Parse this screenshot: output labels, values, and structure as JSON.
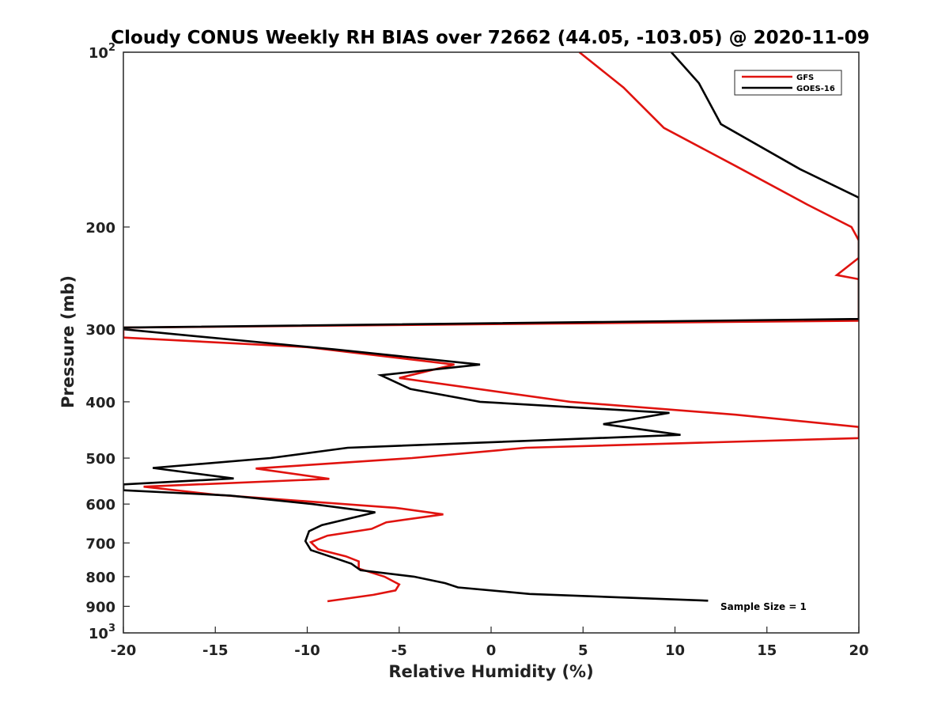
{
  "chart_data": {
    "type": "line",
    "title": "Cloudy CONUS Weekly RH BIAS over 72662 (44.05, -103.05) @ 2020-11-09",
    "xlabel": "Relative Humidity (%)",
    "ylabel": "Pressure (mb)",
    "xlim": [
      -20,
      20
    ],
    "ylim": [
      100,
      1000
    ],
    "yscale": "log",
    "y_reversed": true,
    "grid": false,
    "legend_position": "top-right",
    "x_ticks": [
      -20,
      -15,
      -10,
      -5,
      0,
      5,
      10,
      15,
      20
    ],
    "x_tick_labels": [
      "-20",
      "-15",
      "-10",
      "-5",
      "0",
      "5",
      "10",
      "15",
      "20"
    ],
    "y_ticks": [
      {
        "value": 100,
        "base": "10",
        "exp": "2"
      },
      {
        "value": 200,
        "label": "200"
      },
      {
        "value": 300,
        "label": "300"
      },
      {
        "value": 400,
        "label": "400"
      },
      {
        "value": 500,
        "label": "500"
      },
      {
        "value": 600,
        "label": "600"
      },
      {
        "value": 700,
        "label": "700"
      },
      {
        "value": 800,
        "label": "800"
      },
      {
        "value": 900,
        "label": "900"
      },
      {
        "value": 1000,
        "base": "10",
        "exp": "3"
      }
    ],
    "annotation": "Sample Size = 1",
    "series": [
      {
        "name": "GFS",
        "color": "#e0130f",
        "points": [
          [
            4.8,
            100
          ],
          [
            7.2,
            115
          ],
          [
            9.4,
            135
          ],
          [
            13.3,
            157
          ],
          [
            17.2,
            183
          ],
          [
            19.6,
            200
          ],
          [
            20,
            211
          ],
          [
            20,
            226
          ],
          [
            18.8,
            242
          ],
          [
            20,
            246
          ],
          [
            20,
            290
          ],
          [
            -20,
            298
          ],
          [
            -20,
            310
          ],
          [
            -10,
            322
          ],
          [
            -2,
            345
          ],
          [
            -5,
            364
          ],
          [
            4.3,
            400
          ],
          [
            13.3,
            421
          ],
          [
            20,
            442
          ],
          [
            20,
            462
          ],
          [
            1.9,
            480
          ],
          [
            -4.3,
            500
          ],
          [
            -12.8,
            521
          ],
          [
            -8.8,
            543
          ],
          [
            -18.9,
            560
          ],
          [
            -15,
            578
          ],
          [
            -5.2,
            609
          ],
          [
            -2.6,
            625
          ],
          [
            -5.7,
            645
          ],
          [
            -6.5,
            662
          ],
          [
            -8.9,
            680
          ],
          [
            -9.8,
            698
          ],
          [
            -9.4,
            718
          ],
          [
            -7.9,
            738
          ],
          [
            -7.2,
            753
          ],
          [
            -7.2,
            775
          ],
          [
            -5.8,
            800
          ],
          [
            -5,
            825
          ],
          [
            -5.2,
            845
          ],
          [
            -6.4,
            860
          ],
          [
            -8.9,
            882
          ]
        ]
      },
      {
        "name": "GOES-16",
        "color": "#000000",
        "points": [
          [
            9.8,
            100
          ],
          [
            11.3,
            113
          ],
          [
            12.5,
            133
          ],
          [
            16.8,
            159
          ],
          [
            20,
            178
          ],
          [
            20,
            288
          ],
          [
            -20,
            298
          ],
          [
            -20,
            300
          ],
          [
            -8.5,
            325
          ],
          [
            -0.6,
            345
          ],
          [
            -6,
            360
          ],
          [
            -4.4,
            380
          ],
          [
            -0.6,
            400
          ],
          [
            9.7,
            418
          ],
          [
            6.1,
            437
          ],
          [
            10.3,
            456
          ],
          [
            -7.8,
            480
          ],
          [
            -12,
            500
          ],
          [
            -18.4,
            520
          ],
          [
            -14,
            542
          ],
          [
            -20,
            555
          ],
          [
            -20,
            568
          ],
          [
            -14.2,
            580
          ],
          [
            -9.7,
            600
          ],
          [
            -6.3,
            620
          ],
          [
            -9.2,
            652
          ],
          [
            -9.9,
            668
          ],
          [
            -10.1,
            695
          ],
          [
            -9.8,
            720
          ],
          [
            -8.4,
            745
          ],
          [
            -7.6,
            760
          ],
          [
            -7.1,
            780
          ],
          [
            -4.2,
            800
          ],
          [
            -2.5,
            821
          ],
          [
            -1.8,
            835
          ],
          [
            2.1,
            857
          ],
          [
            11.8,
            880
          ]
        ]
      }
    ]
  }
}
